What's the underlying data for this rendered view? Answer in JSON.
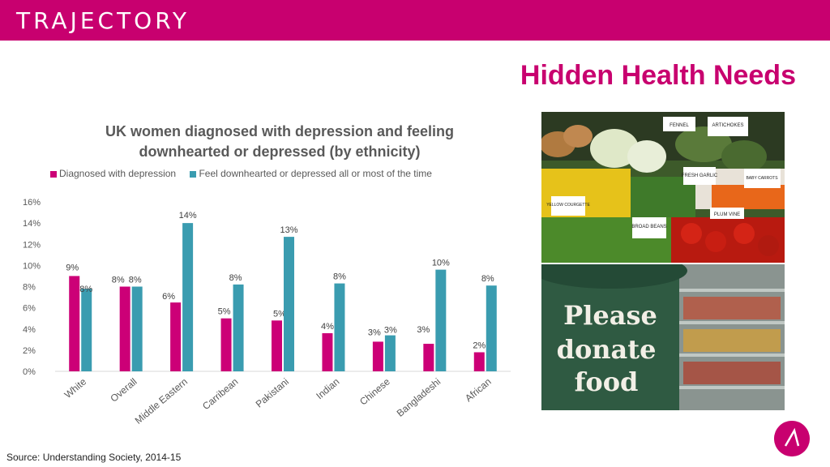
{
  "header": {
    "logo_text": "TRAJECTORY",
    "bar_color": "#c8006f"
  },
  "headline": "Hidden Health Needs",
  "chart_data": {
    "type": "bar",
    "title": "UK women diagnosed with depression and feeling downhearted or depressed (by ethnicity)",
    "categories": [
      "White",
      "Overall",
      "Middle Eastern",
      "Carribean",
      "Pakistani",
      "Indian",
      "Chinese",
      "Bangladeshi",
      "African"
    ],
    "series": [
      {
        "name": "Diagnosed with depression",
        "color": "#cc0077",
        "values": [
          9,
          8,
          6.5,
          5,
          4.8,
          3.6,
          2.8,
          2.6,
          1.8
        ],
        "labels": [
          "9%",
          "8%",
          "6%",
          "5%",
          "5%",
          "4%",
          "3%",
          "",
          "2%"
        ]
      },
      {
        "name": "Feel downhearted or depressed all or most of the time",
        "color": "#3a9cb0",
        "values": [
          7.8,
          8,
          14,
          8.2,
          12.7,
          8.3,
          3.4,
          9.6,
          8.1
        ],
        "labels": [
          "8%",
          "8%",
          "14%",
          "8%",
          "13%",
          "8%",
          "3%",
          "10%",
          "8%"
        ]
      }
    ],
    "extra_labels": [
      "3%"
    ],
    "ylim": [
      0,
      16
    ],
    "yticks": [
      "0%",
      "2%",
      "4%",
      "6%",
      "8%",
      "10%",
      "12%",
      "14%",
      "16%"
    ],
    "grid": false,
    "legend": "top"
  },
  "images": {
    "top_alt": "Vegetable market stall",
    "top_signs": [
      "FENNEL",
      "ARTICHOKES",
      "YELLOW COURGETTE",
      "BROAD BEANS",
      "FRESH GARLIC",
      "BABY CARROTS",
      "PLUM VINE"
    ],
    "bottom_text": [
      "Please",
      "donate",
      "food"
    ]
  },
  "source": "Source: Understanding Society, 2014-15"
}
